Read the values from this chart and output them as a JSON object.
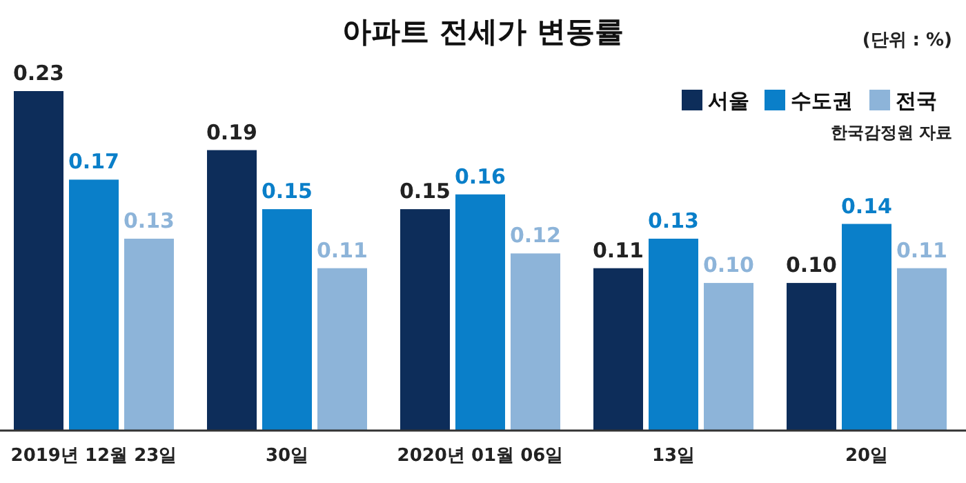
{
  "chart_data": {
    "type": "bar",
    "title": "아파트 전세가 변동률",
    "categories": [
      "2019년 12월 23일",
      "30일",
      "2020년 01월 06일",
      "13일",
      "20일"
    ],
    "series": [
      {
        "name": "서울",
        "color": "#0d2d5a",
        "values": [
          0.23,
          0.19,
          0.15,
          0.11,
          0.1
        ],
        "value_labels": [
          "0.23",
          "0.19",
          "0.15",
          "0.11",
          "0.10"
        ]
      },
      {
        "name": "수도권",
        "color": "#0a7fc9",
        "values": [
          0.17,
          0.15,
          0.16,
          0.13,
          0.14
        ],
        "value_labels": [
          "0.17",
          "0.15",
          "0.16",
          "0.13",
          "0.14"
        ]
      },
      {
        "name": "전국",
        "color": "#8db4d9",
        "values": [
          0.13,
          0.11,
          0.12,
          0.1,
          0.11
        ],
        "value_labels": [
          "0.13",
          "0.11",
          "0.12",
          "0.10",
          "0.11"
        ]
      }
    ],
    "legend": "top right",
    "annotations": [
      "(단위 : %)",
      "한국감정원 자료"
    ]
  }
}
